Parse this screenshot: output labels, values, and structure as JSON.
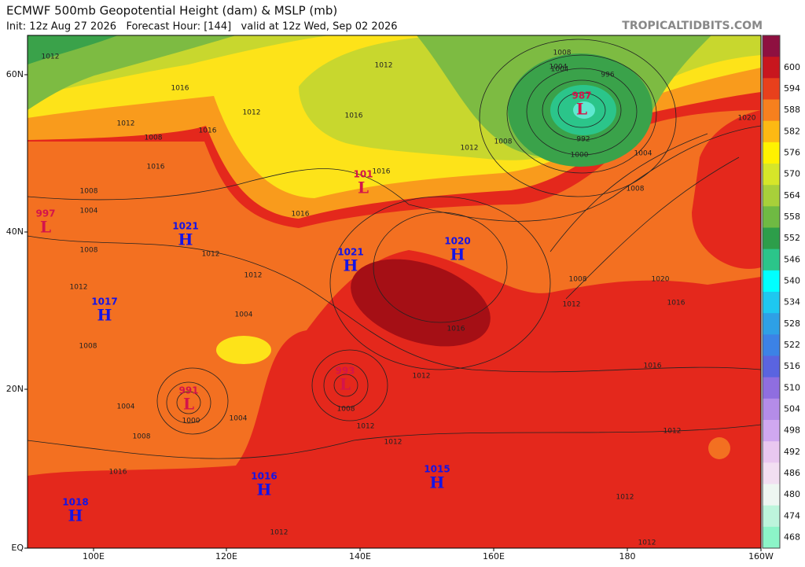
{
  "header": {
    "title": "ECMWF 500mb Geopotential Height (dam) & MSLP (mb)",
    "subtitle": "Init: 12z Aug 27 2026   Forecast Hour: [144]   valid at 12z Wed, Sep 02 2026",
    "credit": "TROPICALTIDBITS.COM"
  },
  "lat_labels": [
    "60N",
    "40N",
    "20N",
    "EQ"
  ],
  "lon_labels": [
    "100E",
    "120E",
    "140E",
    "160E",
    "180",
    "160W"
  ],
  "colorbar": {
    "labels": [
      null,
      "600",
      "594",
      "588",
      "582",
      "576",
      "570",
      "564",
      "558",
      "552",
      "546",
      "540",
      "534",
      "528",
      "522",
      "516",
      "510",
      "504",
      "498",
      "492",
      "486",
      "480",
      "474",
      "468"
    ],
    "colors": [
      "#8e1040",
      "#c8161e",
      "#e8401c",
      "#f7801e",
      "#fdb913",
      "#fff200",
      "#d6e629",
      "#a8d03a",
      "#6fba43",
      "#2d9e4a",
      "#2bc58a",
      "#00ffff",
      "#1ec8f0",
      "#2ea0e6",
      "#3c82e6",
      "#5a64e0",
      "#8f6ee0",
      "#b48ce8",
      "#d0a8f0",
      "#e9c8f0",
      "#f2dff2",
      "#eef6f2",
      "#bdf5dc",
      "#8cf5c8"
    ]
  },
  "centers": [
    {
      "letter": "L",
      "pressure": "987"
    },
    {
      "letter": "L",
      "pressure": "101"
    },
    {
      "letter": "H",
      "pressure": "1020"
    },
    {
      "letter": "H",
      "pressure": "1021"
    },
    {
      "letter": "H",
      "pressure": "1021"
    },
    {
      "letter": "L",
      "pressure": "997"
    },
    {
      "letter": "H",
      "pressure": "1017"
    },
    {
      "letter": "L",
      "pressure": "993"
    },
    {
      "letter": "L",
      "pressure": "991"
    },
    {
      "letter": "H",
      "pressure": "1016"
    },
    {
      "letter": "H",
      "pressure": "1015"
    },
    {
      "letter": "H",
      "pressure": "1018"
    }
  ],
  "contour_labels": [
    "1012",
    "1012",
    "1016",
    "1016",
    "1012",
    "1016",
    "1008",
    "1012",
    "1016",
    "1016",
    "1008",
    "1012",
    "1004",
    "1008",
    "1012",
    "1012",
    "1008",
    "1004",
    "1008",
    "1012",
    "1016",
    "1020",
    "1008",
    "1004",
    "996",
    "992",
    "1000",
    "1004",
    "1008",
    "1012",
    "1020",
    "1016",
    "1016",
    "1012",
    "1012",
    "1004",
    "1000",
    "1004",
    "1008",
    "1012",
    "1012",
    "1012",
    "1012",
    "1012",
    "1016",
    "1016",
    "1008",
    "1004",
    "1008"
  ]
}
